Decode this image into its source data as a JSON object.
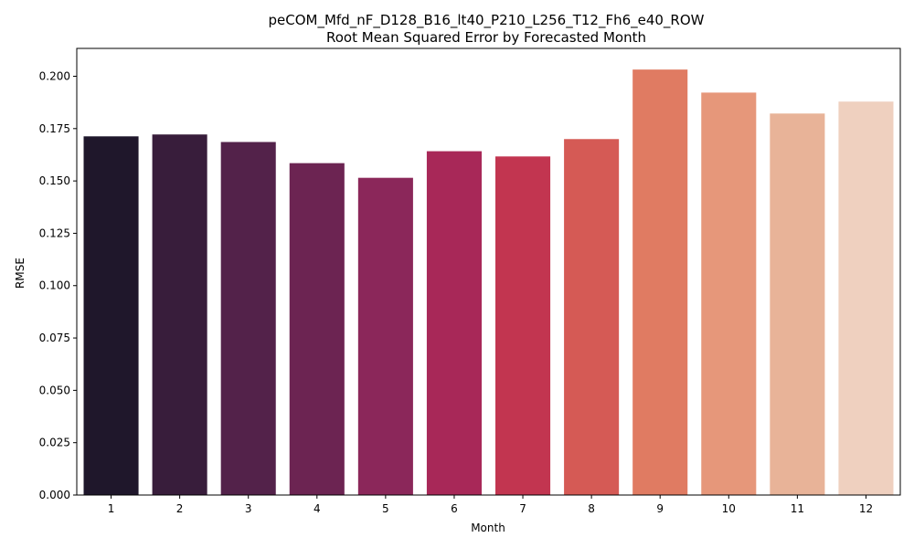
{
  "chart_data": {
    "type": "bar",
    "title_line1": "peCOM_Mfd_nF_D128_B16_lt40_P210_L256_T12_Fh6_e40_ROW",
    "title_line2": "Root Mean Squared Error by Forecasted Month",
    "xlabel": "Month",
    "ylabel": "RMSE",
    "categories": [
      "1",
      "2",
      "3",
      "4",
      "5",
      "6",
      "7",
      "8",
      "9",
      "10",
      "11",
      "12"
    ],
    "values": [
      0.1713,
      0.1722,
      0.1686,
      0.1585,
      0.1515,
      0.1642,
      0.1617,
      0.17,
      0.2032,
      0.1922,
      0.1822,
      0.1879
    ],
    "colors": [
      "#1f172b",
      "#381d3b",
      "#53224a",
      "#6c2452",
      "#8b275a",
      "#a82858",
      "#c23550",
      "#d55a55",
      "#e07b62",
      "#e6977a",
      "#e8b398",
      "#efd0bf"
    ],
    "ylim": [
      0,
      0.2133
    ],
    "yticks": [
      0.0,
      0.025,
      0.05,
      0.075,
      0.1,
      0.125,
      0.15,
      0.175,
      0.2
    ],
    "ytick_labels": [
      "0.000",
      "0.025",
      "0.050",
      "0.075",
      "0.100",
      "0.125",
      "0.150",
      "0.175",
      "0.200"
    ],
    "grid": false,
    "legend": "none"
  }
}
